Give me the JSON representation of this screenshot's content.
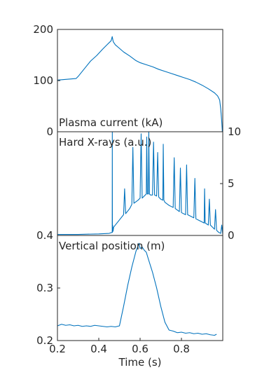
{
  "colors": {
    "series": "#0072BD",
    "axis": "#262626",
    "background": "#ffffff"
  },
  "chart_data": [
    {
      "type": "line",
      "panel_label": "Plasma current (kA)",
      "y_axis_side": "left",
      "xlim": [
        0.2,
        1.0
      ],
      "ylim": [
        0,
        200
      ],
      "yticks": [
        0,
        100,
        200
      ],
      "grid": false,
      "series": [
        {
          "x": [
            0.2,
            0.23,
            0.26,
            0.29,
            0.3,
            0.33,
            0.36,
            0.39,
            0.42,
            0.44,
            0.46,
            0.465,
            0.47,
            0.48,
            0.5,
            0.52,
            0.55,
            0.58,
            0.6,
            0.63,
            0.66,
            0.69,
            0.72,
            0.75,
            0.78,
            0.81,
            0.84,
            0.87,
            0.9,
            0.93,
            0.96,
            0.975,
            0.985,
            0.99,
            0.995,
            0.998
          ],
          "y": [
            101,
            102,
            103,
            104,
            108,
            123,
            138,
            149,
            162,
            170,
            178,
            186,
            176,
            170,
            163,
            156,
            148,
            139,
            135,
            131,
            127,
            122,
            118,
            114,
            110,
            106,
            102,
            97,
            91,
            84,
            76,
            70,
            62,
            45,
            20,
            0
          ]
        }
      ]
    },
    {
      "type": "line",
      "panel_label": "Hard X-rays (a.u.)",
      "y_axis_side": "right",
      "xlim": [
        0.2,
        1.0
      ],
      "ylim": [
        0,
        10
      ],
      "yticks": [
        0,
        5,
        10
      ],
      "grid": false,
      "series": [
        {
          "x": [
            0.2,
            0.3,
            0.4,
            0.45,
            0.465,
            0.4655,
            0.466,
            0.467,
            0.469,
            0.472,
            0.48,
            0.5,
            0.52,
            0.525,
            0.53,
            0.55,
            0.56,
            0.565,
            0.57,
            0.59,
            0.6,
            0.605,
            0.61,
            0.62,
            0.63,
            0.632,
            0.635,
            0.64,
            0.642,
            0.645,
            0.65,
            0.66,
            0.665,
            0.67,
            0.68,
            0.685,
            0.69,
            0.7,
            0.71,
            0.712,
            0.715,
            0.72,
            0.74,
            0.75,
            0.76,
            0.765,
            0.77,
            0.79,
            0.795,
            0.8,
            0.82,
            0.825,
            0.83,
            0.85,
            0.86,
            0.865,
            0.87,
            0.88,
            0.89,
            0.9,
            0.91,
            0.912,
            0.915,
            0.93,
            0.935,
            0.94,
            0.95,
            0.96,
            0.965,
            0.97,
            0.98,
            0.99,
            0.995,
            1.0
          ],
          "y": [
            0.1,
            0.1,
            0.15,
            0.2,
            0.3,
            10,
            0.3,
            1.0,
            0.4,
            0.8,
            1.0,
            1.5,
            2.0,
            4.5,
            2.1,
            2.6,
            3.0,
            8.5,
            3.1,
            3.4,
            3.6,
            9.8,
            3.6,
            3.8,
            4.0,
            9.5,
            4.0,
            4.0,
            10,
            4.0,
            3.9,
            3.9,
            9.0,
            3.9,
            3.8,
            8.0,
            3.7,
            3.5,
            3.4,
            8.8,
            3.4,
            3.2,
            2.9,
            2.8,
            2.7,
            7.5,
            2.6,
            2.3,
            6.5,
            2.2,
            2.0,
            6.8,
            2.0,
            1.8,
            1.7,
            5.5,
            1.6,
            1.5,
            1.4,
            1.3,
            1.2,
            4.5,
            1.2,
            1.0,
            3.5,
            1.0,
            0.8,
            0.6,
            2.5,
            0.5,
            0.3,
            0.2,
            1.0,
            0.1
          ]
        }
      ]
    },
    {
      "type": "line",
      "panel_label": "Vertical position (m)",
      "y_axis_side": "left",
      "xlim": [
        0.2,
        1.0
      ],
      "ylim": [
        0.2,
        0.4
      ],
      "yticks": [
        0.2,
        0.3,
        0.4
      ],
      "xticks": [
        0.2,
        0.4,
        0.6,
        0.8
      ],
      "xlabel": "Time (s)",
      "grid": false,
      "series": [
        {
          "x": [
            0.2,
            0.22,
            0.24,
            0.26,
            0.28,
            0.3,
            0.32,
            0.34,
            0.36,
            0.38,
            0.4,
            0.42,
            0.44,
            0.46,
            0.48,
            0.5,
            0.52,
            0.54,
            0.56,
            0.58,
            0.595,
            0.6,
            0.61,
            0.62,
            0.63,
            0.64,
            0.66,
            0.68,
            0.7,
            0.72,
            0.74,
            0.76,
            0.78,
            0.8,
            0.82,
            0.84,
            0.86,
            0.88,
            0.9,
            0.92,
            0.94,
            0.96,
            0.97
          ],
          "y": [
            0.228,
            0.231,
            0.229,
            0.23,
            0.228,
            0.229,
            0.227,
            0.228,
            0.227,
            0.229,
            0.228,
            0.227,
            0.226,
            0.227,
            0.226,
            0.228,
            0.265,
            0.305,
            0.34,
            0.37,
            0.385,
            0.375,
            0.378,
            0.372,
            0.368,
            0.355,
            0.33,
            0.3,
            0.265,
            0.235,
            0.22,
            0.218,
            0.215,
            0.216,
            0.214,
            0.215,
            0.213,
            0.214,
            0.212,
            0.213,
            0.211,
            0.21,
            0.212
          ]
        }
      ]
    }
  ]
}
